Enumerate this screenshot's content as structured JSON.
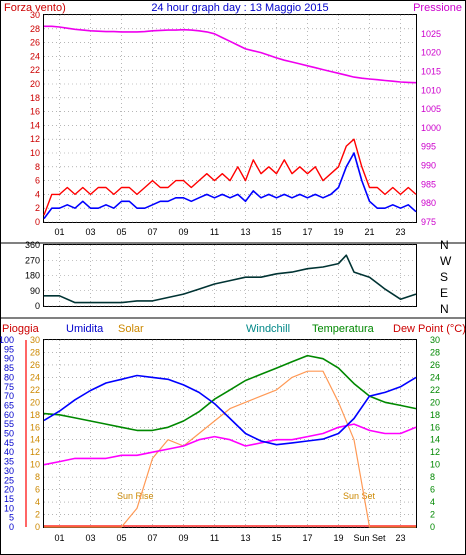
{
  "colors": {
    "background": "#ffffff",
    "grid": "#8a8a8a",
    "frame": "#000000",
    "wind_gust": "#ff0000",
    "wind_avg": "#0000ff",
    "pressure": "#ee00ee",
    "direction": "#003333",
    "humidity": "#0000ff",
    "solar": "#ff9955",
    "windchill": "#008888",
    "temperature": "#008800",
    "dew_point": "#ff00ff",
    "rain": "#ff0000",
    "label_red": "#cc0000",
    "label_blue": "#0000cc",
    "label_magenta": "#cc00cc",
    "label_orange": "#cc8800",
    "label_teal": "#008888",
    "label_green": "#008800",
    "label_red_dark": "#cc0000"
  },
  "header": {
    "wind_label": "Forza vento)",
    "title": "24 hour graph day : 13 Maggio 2015",
    "pressure_label": "Pressione"
  },
  "compass": [
    "N",
    "W",
    "S",
    "E",
    "N"
  ],
  "legend": {
    "rain": "Pioggia",
    "humidity": "Umidita",
    "solar": "Solar",
    "windchill": "Windchill",
    "temperature": "Temperatura",
    "dew_point": "Dew Point (°C)"
  },
  "annotations": {
    "sunrise": "Sun Rise",
    "sunset": "Sun Set"
  },
  "chart_data": [
    {
      "type": "line",
      "panel": "wind",
      "xlabel": "",
      "x_ticks": [
        "01",
        "03",
        "05",
        "07",
        "09",
        "11",
        "13",
        "15",
        "17",
        "19",
        "21",
        "23"
      ],
      "left_axis": {
        "range": [
          0,
          30
        ],
        "ticks": [
          0,
          2,
          4,
          6,
          8,
          10,
          12,
          14,
          16,
          18,
          20,
          22,
          24,
          26,
          28,
          30
        ]
      },
      "right_axis": {
        "range": [
          975,
          1030
        ],
        "ticks": [
          975,
          980,
          985,
          990,
          995,
          1000,
          1005,
          1010,
          1015,
          1020,
          1025
        ]
      },
      "x_hours": [
        0,
        0.5,
        1,
        1.5,
        2,
        2.5,
        3,
        3.5,
        4,
        4.5,
        5,
        5.5,
        6,
        6.5,
        7,
        7.5,
        8,
        8.5,
        9,
        9.5,
        10,
        10.5,
        11,
        11.5,
        12,
        12.5,
        13,
        13.5,
        14,
        14.5,
        15,
        15.5,
        16,
        16.5,
        17,
        17.5,
        18,
        18.5,
        19,
        19.5,
        20,
        20.5,
        21,
        21.5,
        22,
        22.5,
        23,
        23.5,
        24
      ],
      "series": [
        {
          "values": [
            1,
            4,
            4,
            5,
            4,
            5,
            4,
            5,
            5,
            4,
            5,
            5,
            4,
            5,
            6,
            5,
            5,
            6,
            6,
            5,
            6,
            7,
            6,
            7,
            6,
            8,
            6,
            9,
            7,
            8,
            7,
            9,
            7,
            8,
            7,
            8,
            6,
            7,
            8,
            11,
            12,
            8,
            5,
            5,
            4,
            5,
            4,
            5,
            4
          ]
        },
        {
          "values": [
            0.5,
            2,
            2,
            2.5,
            2,
            3,
            2,
            2,
            2.5,
            2,
            3,
            3,
            2,
            2,
            2.5,
            3,
            3,
            3.5,
            3.5,
            3,
            3.5,
            4,
            3.5,
            4,
            3.5,
            4,
            3,
            4.5,
            3.5,
            4,
            3.5,
            4,
            3.5,
            4,
            3.5,
            4,
            3.5,
            4,
            5,
            8,
            10,
            6,
            3,
            2,
            2,
            2.5,
            2,
            2.5,
            1.5
          ]
        },
        {
          "values": [
            1027,
            1027,
            1026.8,
            1026.5,
            1026.2,
            1026,
            1025.8,
            1025.7,
            1025.6,
            1025.6,
            1025.5,
            1025.5,
            1025.5,
            1025.6,
            1025.8,
            1025.9,
            1026,
            1026,
            1026.1,
            1026,
            1025.8,
            1025.5,
            1025,
            1024,
            1023,
            1022,
            1021,
            1020.5,
            1020,
            1019.3,
            1018.6,
            1018,
            1017.5,
            1017,
            1016.5,
            1016,
            1015.5,
            1015,
            1014.5,
            1014,
            1013.5,
            1013.2,
            1013,
            1012.8,
            1012.6,
            1012.4,
            1012.2,
            1012.1,
            1012
          ]
        }
      ]
    },
    {
      "type": "line",
      "panel": "wind_direction",
      "y_axis": {
        "range": [
          0,
          360
        ],
        "ticks": [
          0,
          90,
          180,
          270,
          360
        ]
      },
      "x_hours": [
        0,
        1,
        2,
        3,
        4,
        5,
        6,
        7,
        8,
        9,
        10,
        11,
        12,
        13,
        14,
        15,
        16,
        17,
        18,
        19,
        19.5,
        20,
        21,
        22,
        23,
        24
      ],
      "series": [
        {
          "values": [
            60,
            60,
            20,
            20,
            20,
            20,
            30,
            30,
            50,
            70,
            100,
            130,
            150,
            170,
            170,
            190,
            200,
            220,
            230,
            250,
            300,
            200,
            170,
            100,
            40,
            70
          ]
        }
      ]
    },
    {
      "type": "line",
      "panel": "weather",
      "x_ticks": [
        "01",
        "03",
        "05",
        "07",
        "09",
        "11",
        "13",
        "15",
        "17",
        "19",
        "Sun Set",
        "23"
      ],
      "left_axis": {
        "range": [
          0,
          100
        ],
        "ticks": [
          0,
          5,
          10,
          15,
          20,
          25,
          30,
          35,
          40,
          45,
          50,
          55,
          60,
          65,
          70,
          75,
          80,
          85,
          90,
          95,
          100
        ]
      },
      "temp_axis": {
        "range": [
          0,
          30
        ],
        "ticks": [
          0,
          2,
          4,
          6,
          8,
          10,
          12,
          14,
          16,
          18,
          20,
          22,
          24,
          26,
          28,
          30
        ]
      },
      "x_hours": [
        0,
        1,
        2,
        3,
        4,
        5,
        6,
        7,
        8,
        9,
        10,
        11,
        12,
        13,
        14,
        15,
        16,
        17,
        18,
        19,
        20,
        21,
        22,
        23,
        24
      ],
      "series": [
        {
          "values": [
            57,
            62,
            68,
            73,
            77,
            79,
            81,
            80,
            79,
            76,
            72,
            66,
            58,
            50,
            46,
            44,
            45,
            46,
            47,
            50,
            58,
            70,
            72,
            75,
            80
          ]
        },
        {
          "values": [
            18.2,
            18,
            17.5,
            17,
            16.5,
            16,
            15.5,
            15.5,
            16,
            17,
            18.5,
            20.5,
            22,
            23.5,
            24.5,
            25.5,
            26.5,
            27.5,
            27,
            25.5,
            23,
            21,
            20,
            19.5,
            19
          ]
        },
        {
          "values": [
            10,
            10.5,
            11,
            11,
            11,
            11.5,
            11.5,
            12,
            12.5,
            13,
            14,
            14.5,
            14,
            13,
            13.5,
            14,
            14,
            14.5,
            15,
            16,
            16.5,
            15.5,
            15,
            15,
            16
          ]
        },
        {
          "values": [
            0,
            0,
            0,
            0,
            0,
            0,
            3,
            11,
            14,
            13,
            15,
            17,
            19,
            20,
            21,
            22,
            24,
            25,
            25,
            20,
            14,
            0,
            0,
            0,
            0
          ]
        }
      ]
    }
  ]
}
